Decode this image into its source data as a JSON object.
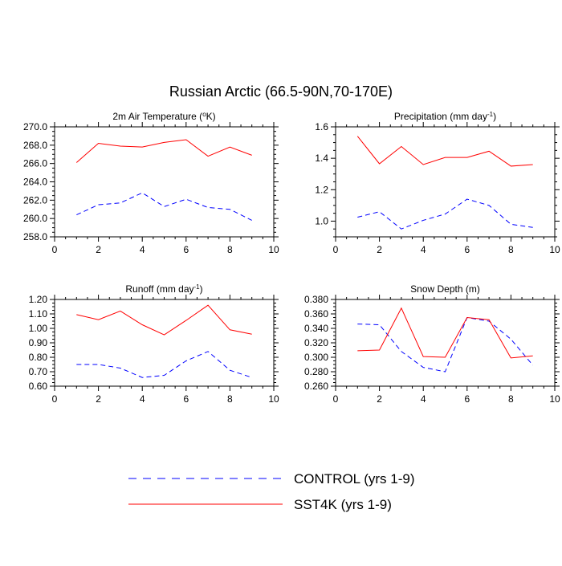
{
  "page": {
    "main_title": "Russian Arctic (66.5-90N,70-170E)"
  },
  "legend": {
    "entries": [
      {
        "name": "CONTROL (yrs 1-9)",
        "color": "#0000ff",
        "style": "dashed"
      },
      {
        "name": "SST4K (yrs 1-9)",
        "color": "#ff0000",
        "style": "solid"
      }
    ]
  },
  "chart_data": [
    {
      "type": "line",
      "title_text": "2m Air Temperature (",
      "title_sup": "o",
      "title_tail": "K)",
      "xlim": [
        0,
        10
      ],
      "xticks": [
        0,
        2,
        4,
        6,
        8,
        10
      ],
      "ylim": [
        258,
        270
      ],
      "yticks": [
        "258.0",
        "260.0",
        "262.0",
        "264.0",
        "266.0",
        "268.0",
        "270.0"
      ],
      "x": [
        1,
        2,
        3,
        4,
        5,
        6,
        7,
        8,
        9
      ],
      "series": [
        {
          "name": "CONTROL (yrs 1-9)",
          "values": [
            260.4,
            261.5,
            261.7,
            262.8,
            261.3,
            262.1,
            261.2,
            261.0,
            259.8
          ]
        },
        {
          "name": "SST4K (yrs 1-9)",
          "values": [
            266.1,
            268.2,
            267.9,
            267.8,
            268.3,
            268.6,
            266.8,
            267.8,
            266.9
          ]
        }
      ]
    },
    {
      "type": "line",
      "title_text": "Precipitation (mm day",
      "title_sup": "-1",
      "title_tail": ")",
      "xlim": [
        0,
        10
      ],
      "xticks": [
        0,
        2,
        4,
        6,
        8,
        10
      ],
      "ylim": [
        0.9,
        1.6
      ],
      "yticks": [
        "1.0",
        "1.2",
        "1.4",
        "1.6"
      ],
      "x": [
        1,
        2,
        3,
        4,
        5,
        6,
        7,
        8,
        9
      ],
      "series": [
        {
          "name": "CONTROL (yrs 1-9)",
          "values": [
            1.025,
            1.06,
            0.95,
            1.005,
            1.045,
            1.14,
            1.1,
            0.98,
            0.96
          ]
        },
        {
          "name": "SST4K (yrs 1-9)",
          "values": [
            1.54,
            1.365,
            1.475,
            1.36,
            1.405,
            1.405,
            1.445,
            1.35,
            1.36
          ]
        }
      ]
    },
    {
      "type": "line",
      "title_text": "Runoff (mm day",
      "title_sup": "-1",
      "title_tail": ")",
      "xlim": [
        0,
        10
      ],
      "xticks": [
        0,
        2,
        4,
        6,
        8,
        10
      ],
      "ylim": [
        0.6,
        1.2
      ],
      "yticks": [
        "0.60",
        "0.70",
        "0.80",
        "0.90",
        "1.00",
        "1.10",
        "1.20"
      ],
      "x": [
        1,
        2,
        3,
        4,
        5,
        6,
        7,
        8,
        9
      ],
      "series": [
        {
          "name": "CONTROL (yrs 1-9)",
          "values": [
            0.75,
            0.75,
            0.725,
            0.66,
            0.675,
            0.775,
            0.84,
            0.71,
            0.66
          ]
        },
        {
          "name": "SST4K (yrs 1-9)",
          "values": [
            1.095,
            1.06,
            1.12,
            1.025,
            0.955,
            1.055,
            1.16,
            0.99,
            0.96
          ]
        }
      ]
    },
    {
      "type": "line",
      "title_text": "Snow Depth (m)",
      "title_sup": "",
      "title_tail": "",
      "xlim": [
        0,
        10
      ],
      "xticks": [
        0,
        2,
        4,
        6,
        8,
        10
      ],
      "ylim": [
        0.26,
        0.38
      ],
      "yticks": [
        "0.260",
        "0.280",
        "0.300",
        "0.320",
        "0.340",
        "0.360",
        "0.380"
      ],
      "x": [
        1,
        2,
        3,
        4,
        5,
        6,
        7,
        8,
        9
      ],
      "series": [
        {
          "name": "CONTROL (yrs 1-9)",
          "values": [
            0.346,
            0.345,
            0.308,
            0.286,
            0.28,
            0.355,
            0.35,
            0.325,
            0.289
          ]
        },
        {
          "name": "SST4K (yrs 1-9)",
          "values": [
            0.309,
            0.31,
            0.368,
            0.301,
            0.3,
            0.355,
            0.352,
            0.299,
            0.302
          ]
        }
      ]
    }
  ]
}
